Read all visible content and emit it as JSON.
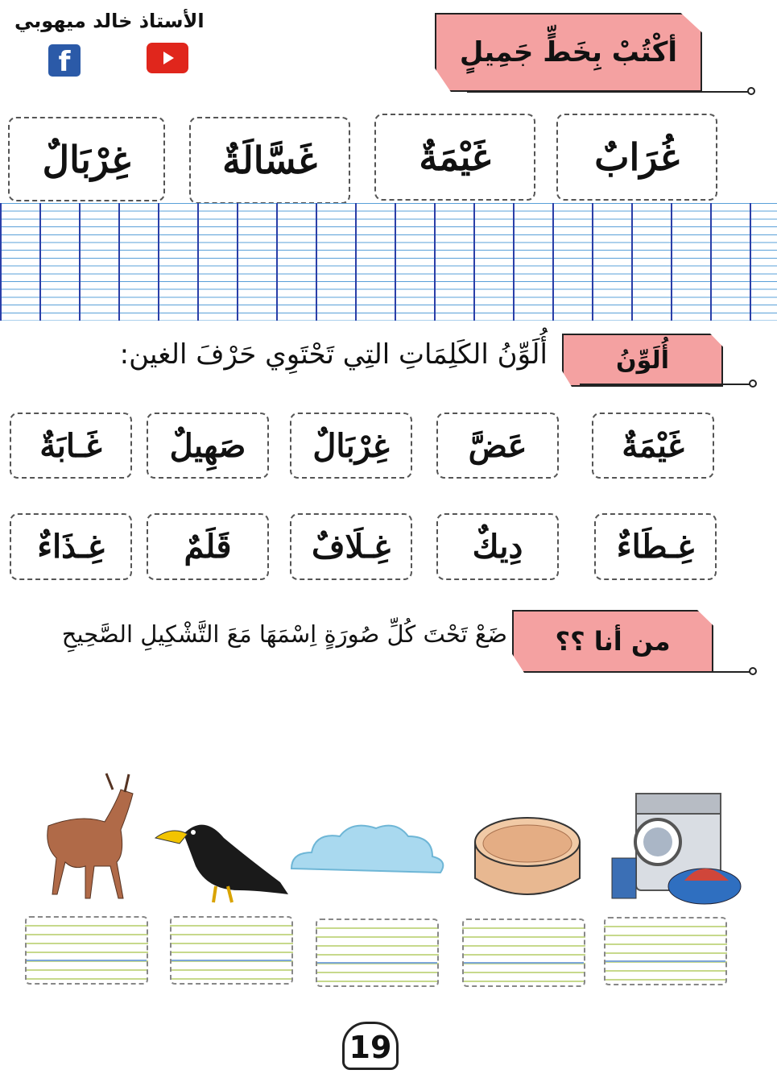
{
  "header": {
    "author": "الأستاذ خالد ميهوبي",
    "social": [
      "facebook-icon",
      "youtube-icon"
    ]
  },
  "section1": {
    "title": "أكْتُبْ بِخَطٍّ جَمِيلٍ",
    "words": [
      "غُرَابٌ",
      "غَيْمَةٌ",
      "غَسَّالَةٌ",
      "غِرْبَالٌ"
    ]
  },
  "section2": {
    "title": "أُلَوِّنُ",
    "instruction": "أُلَوِّنُ الكَلِمَاتِ التِي تَحْتَوِي حَرْفَ الغين:",
    "row1": [
      "غَيْمَةٌ",
      "عَضَّ",
      "غِرْبَالٌ",
      "صَهِيلٌ",
      "غَـابَةٌ"
    ],
    "row2": [
      "غِـطَاءٌ",
      "دِيكٌ",
      "غِـلَافٌ",
      "قَلَمٌ",
      "غِـذَاءٌ"
    ]
  },
  "section3": {
    "title": "من أنا ؟؟",
    "instruction": "ضَعْ تَحْتَ كُلِّ صُورَةٍ اِسْمَهَا مَعَ التَّشْكِيلِ الصَّحِيحِ",
    "pictures": [
      "washing-machine",
      "sieve",
      "cloud",
      "crow",
      "deer"
    ]
  },
  "page_number": "19",
  "colors": {
    "banner": "#f4a1a1",
    "grid_vertical": "#2b3fa8",
    "grid_horizontal": "#5aa0d8"
  }
}
